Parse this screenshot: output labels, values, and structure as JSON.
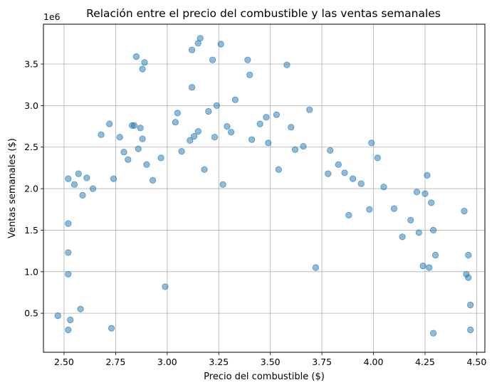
{
  "chart_data": {
    "type": "scatter",
    "title": "Relación entre el precio del combustible y las ventas semanales",
    "xlabel": "Precio del combustible ($)",
    "ylabel": "Ventas semanales ($)",
    "y_offset_label": "1e6",
    "xlim": [
      2.4,
      4.54
    ],
    "ylim": [
      0.03,
      3.98
    ],
    "xticks": [
      "2.50",
      "2.75",
      "3.00",
      "3.25",
      "3.50",
      "3.75",
      "4.00",
      "4.25",
      "4.50"
    ],
    "xtick_values": [
      2.5,
      2.75,
      3.0,
      3.25,
      3.5,
      3.75,
      4.0,
      4.25,
      4.5
    ],
    "yticks": [
      "0.5",
      "1.0",
      "1.5",
      "2.0",
      "2.5",
      "3.0",
      "3.5"
    ],
    "ytick_values": [
      0.5,
      1.0,
      1.5,
      2.0,
      2.5,
      3.0,
      3.5
    ],
    "grid": true,
    "marker_color": "#1f77b4",
    "marker_alpha": 0.5,
    "series": [
      {
        "x": [
          2.47,
          2.52,
          2.52,
          2.52,
          2.52,
          2.52,
          2.53,
          2.55,
          2.57,
          2.58,
          2.59,
          2.61,
          2.64,
          2.68,
          2.72,
          2.73,
          2.74,
          2.77,
          2.79,
          2.81,
          2.83,
          2.84,
          2.85,
          2.86,
          2.87,
          2.88,
          2.88,
          2.89,
          2.9,
          2.93,
          2.97,
          2.99,
          3.04,
          3.05,
          3.07,
          3.11,
          3.12,
          3.12,
          3.13,
          3.15,
          3.15,
          3.16,
          3.18,
          3.2,
          3.22,
          3.23,
          3.24,
          3.26,
          3.27,
          3.29,
          3.31,
          3.33,
          3.39,
          3.4,
          3.41,
          3.45,
          3.48,
          3.49,
          3.53,
          3.54,
          3.58,
          3.6,
          3.62,
          3.66,
          3.69,
          3.72,
          3.78,
          3.79,
          3.83,
          3.86,
          3.88,
          3.9,
          3.94,
          3.98,
          3.99,
          4.02,
          4.05,
          4.1,
          4.14,
          4.18,
          4.21,
          4.22,
          4.24,
          4.25,
          4.26,
          4.27,
          4.28,
          4.29,
          4.29,
          4.3,
          4.44,
          4.45,
          4.46,
          4.46,
          4.47,
          4.47
        ],
        "y": [
          0.47,
          2.12,
          1.58,
          1.23,
          0.97,
          0.3,
          0.42,
          2.05,
          2.18,
          0.55,
          1.92,
          2.13,
          2.0,
          2.65,
          2.78,
          0.32,
          2.12,
          2.62,
          2.44,
          2.35,
          2.76,
          2.76,
          3.59,
          2.48,
          2.73,
          2.6,
          3.44,
          3.52,
          2.29,
          2.1,
          2.37,
          0.82,
          2.8,
          2.91,
          2.45,
          2.58,
          3.67,
          3.22,
          2.63,
          3.75,
          2.69,
          3.81,
          2.23,
          2.93,
          3.55,
          2.62,
          3.0,
          3.74,
          2.05,
          2.75,
          2.68,
          3.07,
          3.55,
          3.37,
          2.59,
          2.78,
          2.86,
          2.55,
          2.89,
          2.23,
          3.49,
          2.74,
          2.47,
          2.51,
          2.95,
          1.05,
          2.18,
          2.46,
          2.29,
          2.19,
          1.68,
          2.12,
          2.06,
          1.75,
          2.55,
          2.37,
          2.02,
          1.76,
          1.42,
          1.62,
          1.96,
          1.47,
          1.07,
          1.94,
          2.16,
          1.05,
          1.83,
          1.5,
          0.26,
          1.2,
          1.73,
          0.97,
          0.93,
          1.2,
          0.6,
          0.3
        ]
      }
    ]
  }
}
